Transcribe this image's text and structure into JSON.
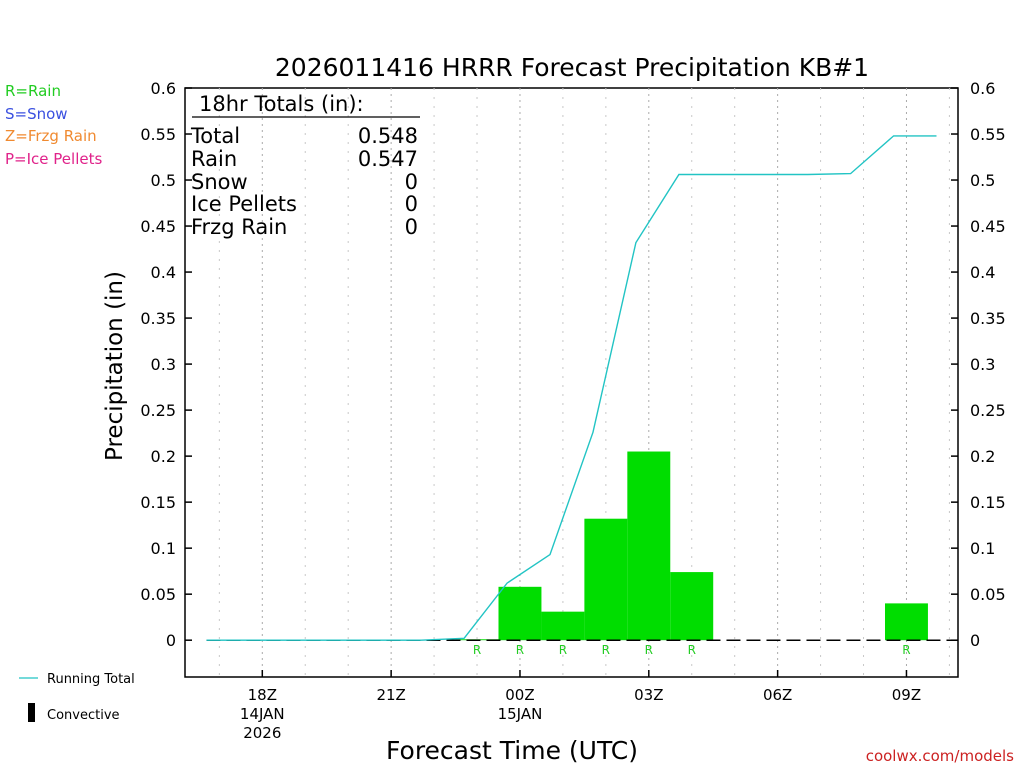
{
  "legend_left": [
    {
      "text": "R=Rain",
      "color": "#22cc22"
    },
    {
      "text": "S=Snow",
      "color": "#3a50e0"
    },
    {
      "text": "Z=Frzg Rain",
      "color": "#f08a30"
    },
    {
      "text": "P=Ice Pellets",
      "color": "#e0228a"
    }
  ],
  "legend_bottom": {
    "running_total": "Running Total",
    "convective": "Convective"
  },
  "totals_box": {
    "title": "18hr Totals (in):",
    "rows": [
      {
        "label": "Total",
        "value": "0.548"
      },
      {
        "label": "Rain",
        "value": "0.547"
      },
      {
        "label": "Snow",
        "value": "0"
      },
      {
        "label": "Ice Pellets",
        "value": "0"
      },
      {
        "label": "Frzg Rain",
        "value": "0"
      }
    ]
  },
  "watermark": "coolwx.com/models",
  "colors": {
    "rain": "#00dd00",
    "running_total": "#22c4c4",
    "precip_label": "#22cc22",
    "watermark": "#cc2222"
  },
  "chart_data": {
    "type": "bar",
    "title": "2026011416 HRRR Forecast Precipitation KB#1",
    "xlabel": "Forecast Time (UTC)",
    "ylabel": "Precipitation (in)",
    "ylim": [
      -0.04,
      0.6
    ],
    "yticks": [
      0,
      0.05,
      0.1,
      0.15,
      0.2,
      0.25,
      0.3,
      0.35,
      0.4,
      0.45,
      0.5,
      0.55,
      0.6
    ],
    "ytick_labels": [
      "0",
      "0.05",
      "0.1",
      "0.15",
      "0.2",
      "0.25",
      "0.3",
      "0.35",
      "0.4",
      "0.45",
      "0.5",
      "0.55",
      "0.6"
    ],
    "xlim_hours": [
      16.2,
      34.2
    ],
    "xticks": [
      {
        "hour": 18,
        "lines": [
          "18Z",
          "14JAN",
          "2026"
        ]
      },
      {
        "hour": 21,
        "lines": [
          "21Z"
        ]
      },
      {
        "hour": 24,
        "lines": [
          "00Z",
          "15JAN"
        ]
      },
      {
        "hour": 27,
        "lines": [
          "03Z"
        ]
      },
      {
        "hour": 30,
        "lines": [
          "06Z"
        ]
      },
      {
        "hour": 33,
        "lines": [
          "09Z"
        ]
      }
    ],
    "grid": "dotted vertical",
    "hourly_precip": {
      "hours": [
        17,
        18,
        19,
        20,
        21,
        22,
        23,
        24,
        25,
        26,
        27,
        28,
        29,
        30,
        31,
        32,
        33,
        34
      ],
      "values": [
        0,
        0,
        0,
        0,
        0,
        0,
        0.001,
        0.058,
        0.031,
        0.132,
        0.205,
        0.074,
        0,
        0,
        0,
        0,
        0.04,
        0
      ],
      "types": [
        "",
        "",
        "",
        "",
        "",
        "",
        "R",
        "R",
        "R",
        "R",
        "R",
        "R",
        "",
        "",
        "",
        "",
        "R",
        ""
      ]
    },
    "running_total": {
      "hours": [
        16.7,
        17.7,
        18.7,
        19.7,
        20.7,
        21.7,
        22.7,
        23.7,
        24.7,
        25.7,
        26.7,
        27.7,
        28.7,
        29.7,
        30.7,
        31.7,
        32.7,
        33.7
      ],
      "values": [
        0,
        0,
        0,
        0,
        0,
        0,
        0.002,
        0.062,
        0.093,
        0.226,
        0.432,
        0.506,
        0.506,
        0.506,
        0.506,
        0.507,
        0.548,
        0.548
      ]
    }
  }
}
